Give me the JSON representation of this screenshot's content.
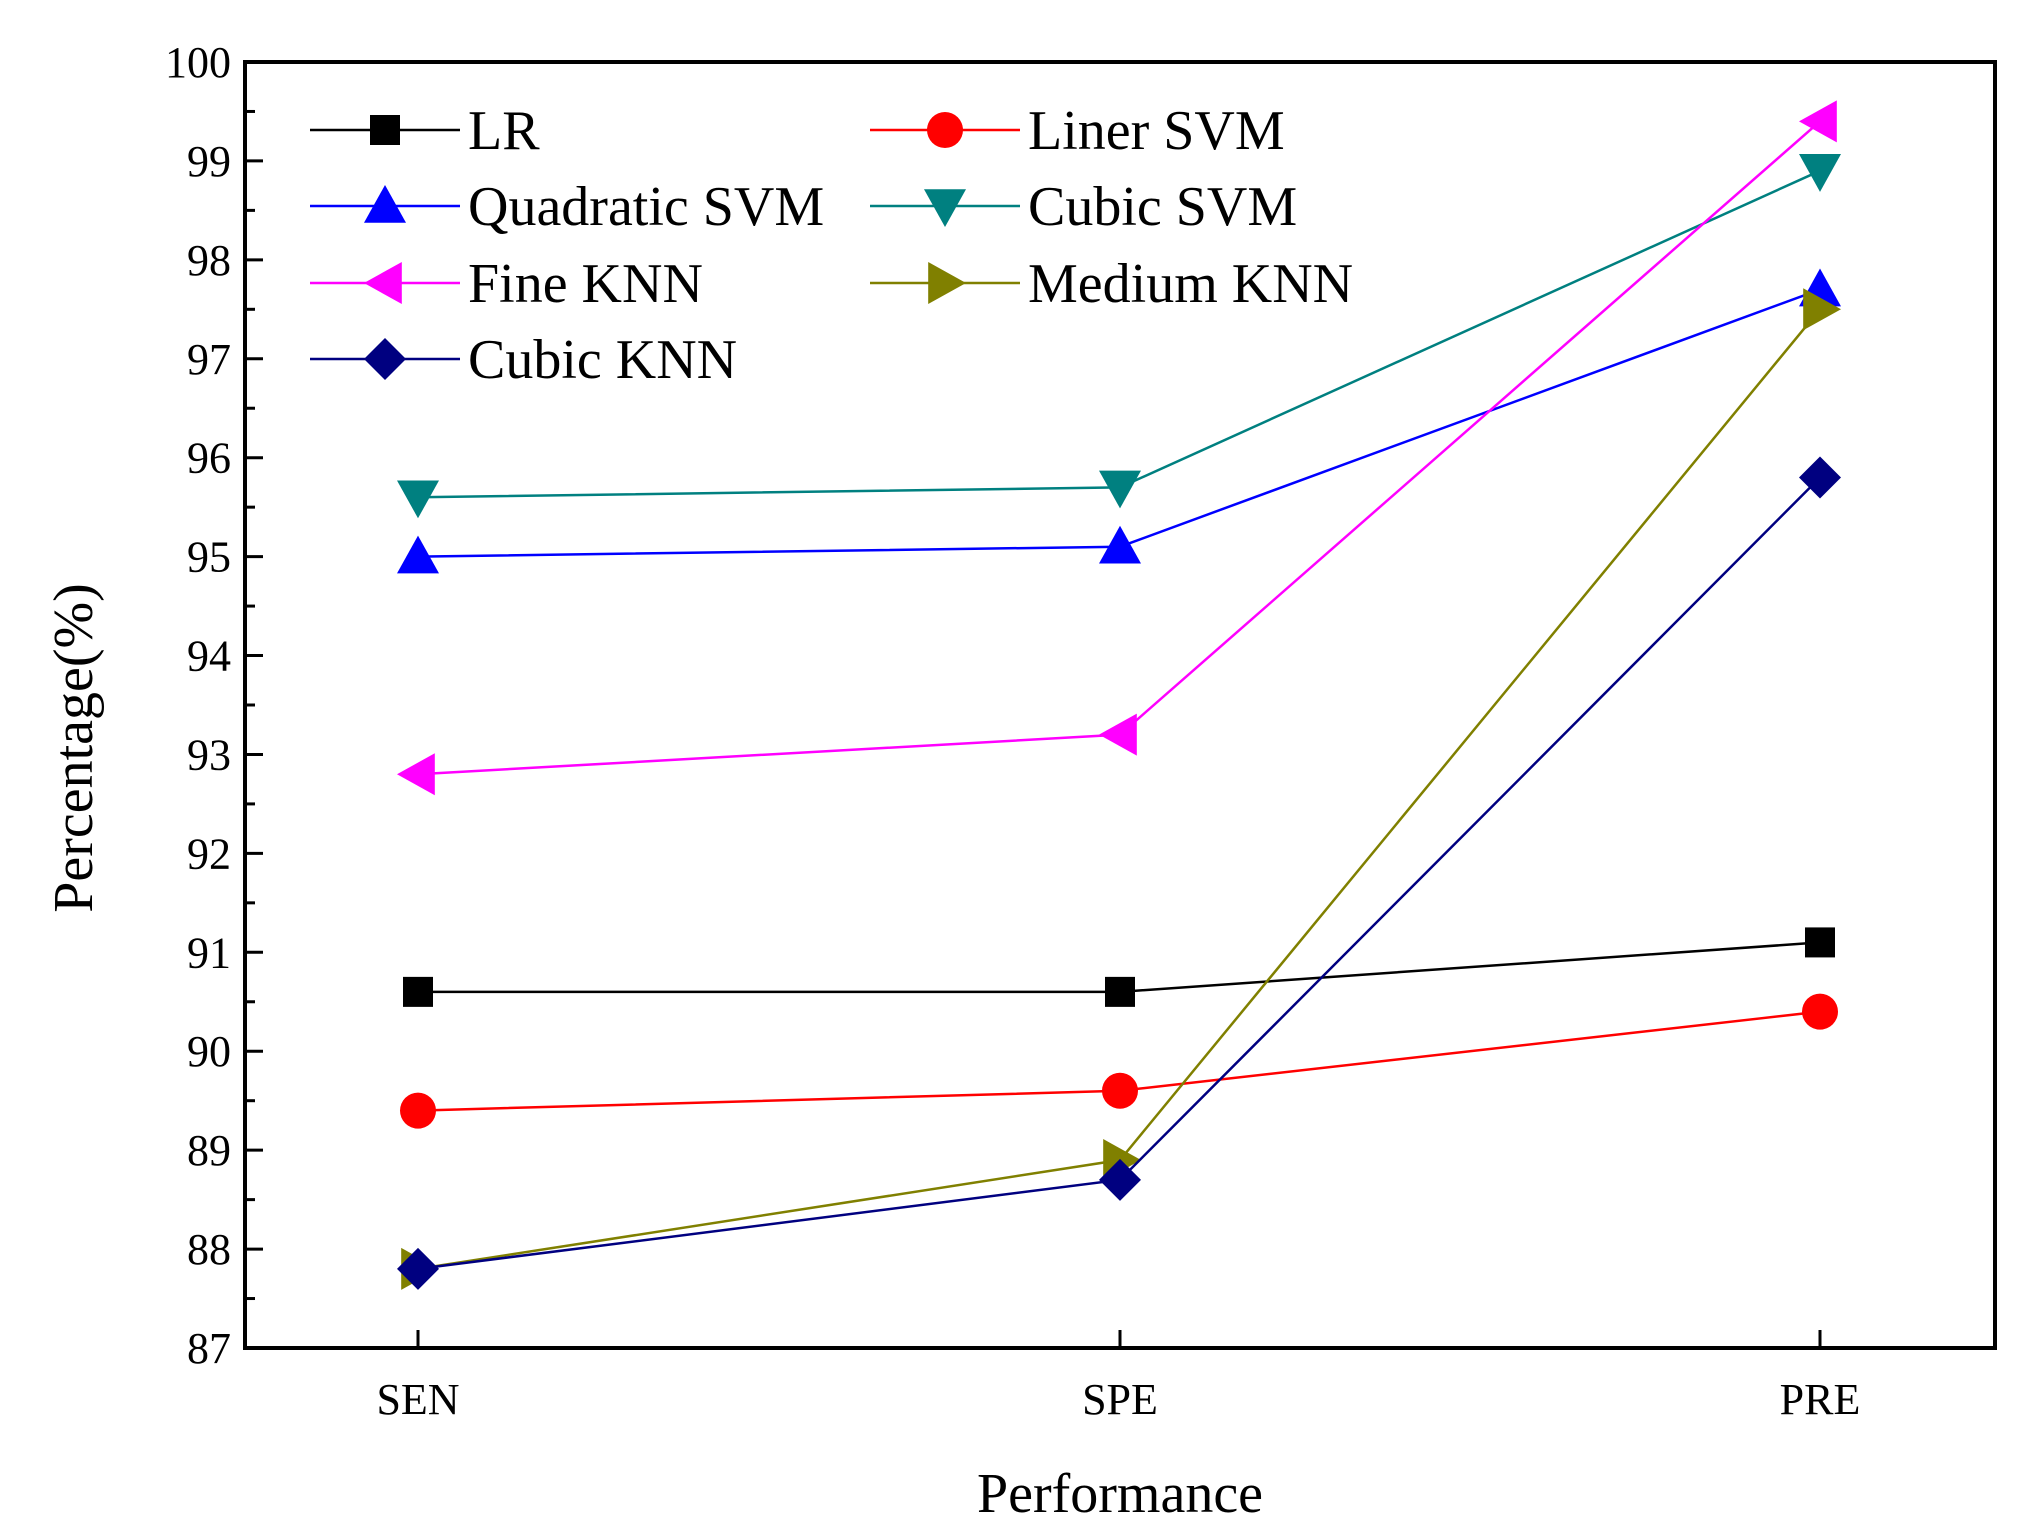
{
  "chart_data": {
    "type": "line",
    "title": "",
    "xlabel": "Performance",
    "ylabel": "Percentage(%)",
    "categories": [
      "SEN",
      "SPE",
      "PRE"
    ],
    "ylim": [
      87,
      100
    ],
    "yticks": [
      87,
      88,
      89,
      90,
      91,
      92,
      93,
      94,
      95,
      96,
      97,
      98,
      99,
      100
    ],
    "grid": false,
    "legend_position": "top-left",
    "series": [
      {
        "name": "LR",
        "values": [
          90.6,
          90.6,
          91.1
        ],
        "color": "#000000",
        "marker": "square"
      },
      {
        "name": "Liner SVM",
        "values": [
          89.4,
          89.6,
          90.4
        ],
        "color": "#ff0000",
        "marker": "circle"
      },
      {
        "name": "Quadratic SVM",
        "values": [
          95.0,
          95.1,
          97.7
        ],
        "color": "#0000ff",
        "marker": "triangle-up"
      },
      {
        "name": "Cubic SVM",
        "values": [
          95.6,
          95.7,
          98.9
        ],
        "color": "#008080",
        "marker": "triangle-down"
      },
      {
        "name": "Fine KNN",
        "values": [
          92.8,
          93.2,
          99.4
        ],
        "color": "#ff00ff",
        "marker": "triangle-left"
      },
      {
        "name": "Medium KNN",
        "values": [
          87.8,
          88.9,
          97.5
        ],
        "color": "#808000",
        "marker": "triangle-right"
      },
      {
        "name": "Cubic KNN",
        "values": [
          87.8,
          88.7,
          95.8
        ],
        "color": "#000080",
        "marker": "diamond"
      }
    ]
  }
}
